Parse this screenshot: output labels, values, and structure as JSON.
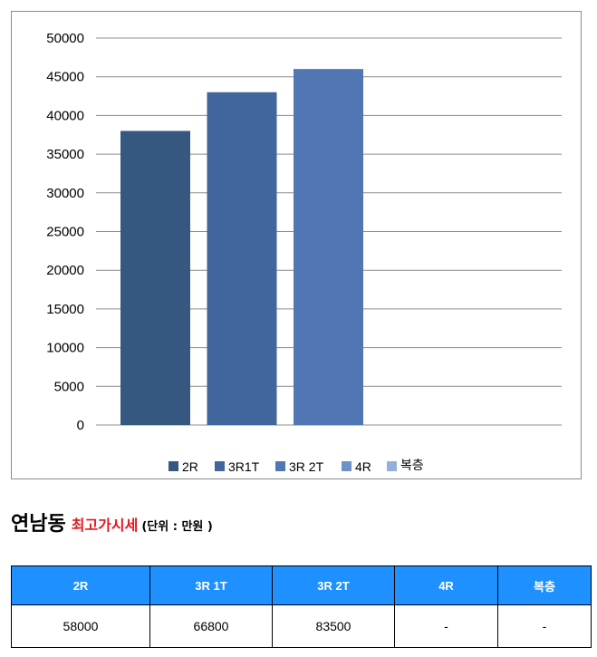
{
  "chart_data": {
    "type": "bar",
    "categories": [
      "2R",
      "3R1T",
      "3R 2T",
      "4R",
      "복층"
    ],
    "values": [
      38000,
      43000,
      46000,
      null,
      null
    ],
    "ylim": [
      0,
      50000
    ],
    "yticks": [
      0,
      5000,
      10000,
      15000,
      20000,
      25000,
      30000,
      35000,
      40000,
      45000,
      50000
    ],
    "grid": true,
    "legend_position": "bottom",
    "colors": [
      "#36577f",
      "#40669d",
      "#5077b4",
      "#6f92c5",
      "#93b0d8"
    ]
  },
  "heading": {
    "main": "연남동",
    "accent": "최고가시세",
    "unit": "(단위 : 만원 )"
  },
  "table": {
    "headers": [
      "2R",
      "3R 1T",
      "3R 2T",
      "4R",
      "복층"
    ],
    "row": [
      "58000",
      "66800",
      "83500",
      "-",
      "-"
    ],
    "header_color": "#1e90ff"
  }
}
